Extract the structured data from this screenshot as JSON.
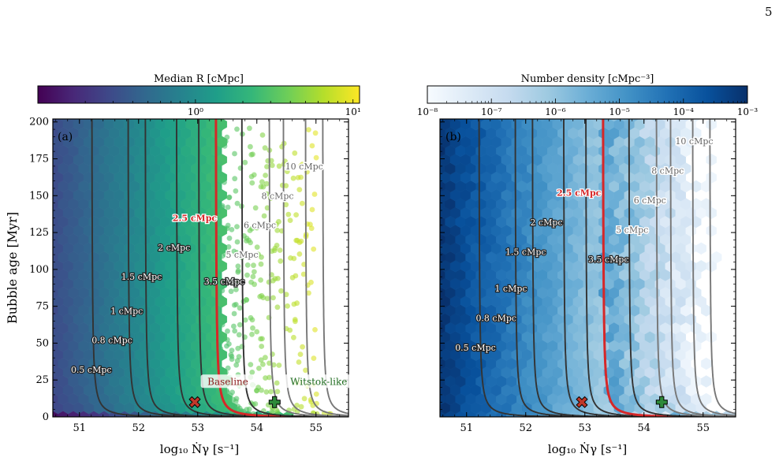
{
  "page_number": "5",
  "colors": {
    "viridis": [
      "#440154",
      "#482878",
      "#3e4989",
      "#31688e",
      "#26828e",
      "#1f9e89",
      "#35b779",
      "#6ece58",
      "#b5de2b",
      "#fde725"
    ],
    "blues": [
      "#f7fbff",
      "#deebf7",
      "#c6dbef",
      "#9ecae1",
      "#6baed6",
      "#4292c6",
      "#2171b5",
      "#08519c",
      "#08306b"
    ],
    "contour": "#333333",
    "highlight": "#d62728",
    "baseline_marker": "#c0392b",
    "witstok_marker": "#2e8b3a",
    "baseline_text": "#8b1a1a",
    "witstok_text": "#1e6b1e"
  },
  "chart_data": [
    {
      "type": "heatmap",
      "panel_label": "(a)",
      "colorbar": {
        "label": "Median R [cMpc]",
        "scale": "log",
        "range": [
          0.1,
          11
        ],
        "ticks": [
          {
            "v": 1,
            "label": "10⁰"
          },
          {
            "v": 10,
            "label": "10¹"
          }
        ]
      },
      "xlabel": "log₁₀ Ṅγ [s⁻¹]",
      "ylabel": "Bubble age [Myr]",
      "xlim": [
        50.55,
        55.55
      ],
      "ylim": [
        0,
        202
      ],
      "xticks": [
        {
          "v": 51,
          "label": "51"
        },
        {
          "v": 52,
          "label": "52"
        },
        {
          "v": 53,
          "label": "53"
        },
        {
          "v": 54,
          "label": "54"
        },
        {
          "v": 55,
          "label": "55"
        }
      ],
      "yticks": [
        {
          "v": 0,
          "label": "0"
        },
        {
          "v": 25,
          "label": "25"
        },
        {
          "v": 50,
          "label": "50"
        },
        {
          "v": 75,
          "label": "75"
        },
        {
          "v": 100,
          "label": "100"
        },
        {
          "v": 125,
          "label": "125"
        },
        {
          "v": 150,
          "label": "150"
        },
        {
          "v": 175,
          "label": "175"
        },
        {
          "v": 200,
          "label": "200"
        }
      ],
      "contours": [
        {
          "radius": 0.5,
          "label": "0.5 cMpc",
          "label_at": [
            51.2,
            32
          ]
        },
        {
          "radius": 0.8,
          "label": "0.8 cMpc",
          "label_at": [
            51.55,
            52
          ]
        },
        {
          "radius": 1,
          "label": "1 cMpc",
          "label_at": [
            51.8,
            72
          ]
        },
        {
          "radius": 1.5,
          "label": "1.5 cMpc",
          "label_at": [
            52.05,
            95
          ]
        },
        {
          "radius": 2,
          "label": "2 cMpc",
          "label_at": [
            52.6,
            115
          ]
        },
        {
          "radius": 2.5,
          "label": "2.5 cMpc",
          "label_at": [
            52.95,
            135
          ],
          "highlight": true
        },
        {
          "radius": 3.5,
          "label": "3.5 cMpc",
          "label_at": [
            53.45,
            92
          ]
        },
        {
          "radius": 5,
          "label": "5 cMpc",
          "label_at": [
            53.75,
            110
          ]
        },
        {
          "radius": 6,
          "label": "6 cMpc",
          "label_at": [
            54.05,
            130
          ]
        },
        {
          "radius": 8,
          "label": "8 cMpc",
          "label_at": [
            54.35,
            150
          ]
        },
        {
          "radius": 10,
          "label": "10 cMpc",
          "label_at": [
            54.8,
            170
          ]
        }
      ],
      "markers": [
        {
          "name": "Baseline",
          "symbol": "x",
          "x": 52.95,
          "y": 10
        },
        {
          "name": "Witstok-like",
          "symbol": "plus",
          "x": 54.3,
          "y": 10
        }
      ]
    },
    {
      "type": "heatmap",
      "panel_label": "(b)",
      "colorbar": {
        "label": "Number density [cMpc⁻³]",
        "scale": "log",
        "range": [
          1e-08,
          0.001
        ],
        "ticks": [
          {
            "v": -8,
            "label": "10⁻⁸"
          },
          {
            "v": -7,
            "label": "10⁻⁷"
          },
          {
            "v": -6,
            "label": "10⁻⁶"
          },
          {
            "v": -5,
            "label": "10⁻⁵"
          },
          {
            "v": -4,
            "label": "10⁻⁴"
          },
          {
            "v": -3,
            "label": "10⁻³"
          }
        ]
      },
      "xlabel": "log₁₀ Ṅγ [s⁻¹]",
      "xlim": [
        50.55,
        55.55
      ],
      "ylim": [
        0,
        202
      ],
      "xticks": [
        {
          "v": 51,
          "label": "51"
        },
        {
          "v": 52,
          "label": "52"
        },
        {
          "v": 53,
          "label": "53"
        },
        {
          "v": 54,
          "label": "54"
        },
        {
          "v": 55,
          "label": "55"
        }
      ],
      "contours": [
        {
          "radius": 0.5,
          "label": "0.5 cMpc",
          "label_at": [
            51.15,
            47
          ]
        },
        {
          "radius": 0.8,
          "label": "0.8 cMpc",
          "label_at": [
            51.5,
            67
          ]
        },
        {
          "radius": 1,
          "label": "1 cMpc",
          "label_at": [
            51.75,
            87
          ]
        },
        {
          "radius": 1.5,
          "label": "1.5 cMpc",
          "label_at": [
            52.0,
            112
          ]
        },
        {
          "radius": 2,
          "label": "2 cMpc",
          "label_at": [
            52.35,
            132
          ]
        },
        {
          "radius": 2.5,
          "label": "2.5 cMpc",
          "label_at": [
            52.9,
            152
          ],
          "highlight": true
        },
        {
          "radius": 3.5,
          "label": "3.5 cMpc",
          "label_at": [
            53.4,
            107
          ]
        },
        {
          "radius": 5,
          "label": "5 cMpc",
          "label_at": [
            53.8,
            127
          ]
        },
        {
          "radius": 6,
          "label": "6 cMpc",
          "label_at": [
            54.1,
            147
          ]
        },
        {
          "radius": 8,
          "label": "8 cMpc",
          "label_at": [
            54.4,
            167
          ]
        },
        {
          "radius": 10,
          "label": "10 cMpc",
          "label_at": [
            54.85,
            187
          ]
        }
      ],
      "markers": [
        {
          "name": "Baseline",
          "symbol": "x",
          "x": 52.95,
          "y": 10
        },
        {
          "name": "Witstok-like",
          "symbol": "plus",
          "x": 54.3,
          "y": 10
        }
      ]
    }
  ]
}
